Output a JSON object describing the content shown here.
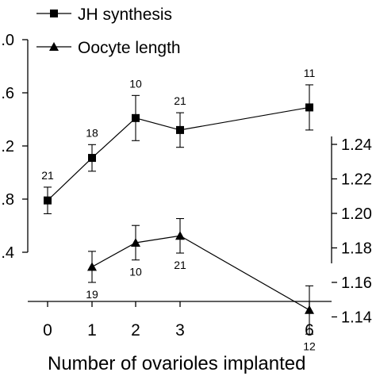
{
  "chart_data": {
    "type": "line",
    "xlabel": "Number of ovarioles implanted",
    "x_ticks": [
      "0",
      "1",
      "2",
      "3",
      "6"
    ],
    "left_y_tick_labels": [
      ".0",
      ".6",
      ".2",
      ".8",
      ".4"
    ],
    "left_y_tick_values": [
      2.0,
      1.6,
      1.2,
      0.8,
      0.4
    ],
    "left_ylim": [
      0.2,
      2.2
    ],
    "right_y_tick_labels": [
      "1.24",
      "1.22",
      "1.20",
      "1.18",
      "1.16",
      "1.14"
    ],
    "right_y_tick_values": [
      1.24,
      1.22,
      1.2,
      1.18,
      1.16,
      1.14
    ],
    "right_ylim": [
      1.13,
      1.248
    ],
    "legend_position": "top-left",
    "series": [
      {
        "name": "JH synthesis",
        "marker": "square",
        "axis": "left",
        "x": [
          0,
          1,
          2,
          3,
          6
        ],
        "y": [
          0.79,
          1.11,
          1.41,
          1.32,
          1.49
        ],
        "err": [
          0.1,
          0.1,
          0.17,
          0.13,
          0.17
        ],
        "n": [
          "21",
          "18",
          "10",
          "21",
          "11"
        ]
      },
      {
        "name": "Oocyte length",
        "marker": "triangle",
        "axis": "right",
        "x": [
          1,
          2,
          3,
          6
        ],
        "y": [
          1.169,
          1.183,
          1.187,
          1.144
        ],
        "err": [
          0.009,
          0.01,
          0.01,
          0.014
        ],
        "n": [
          "19",
          "10",
          "21",
          "12"
        ]
      }
    ]
  }
}
